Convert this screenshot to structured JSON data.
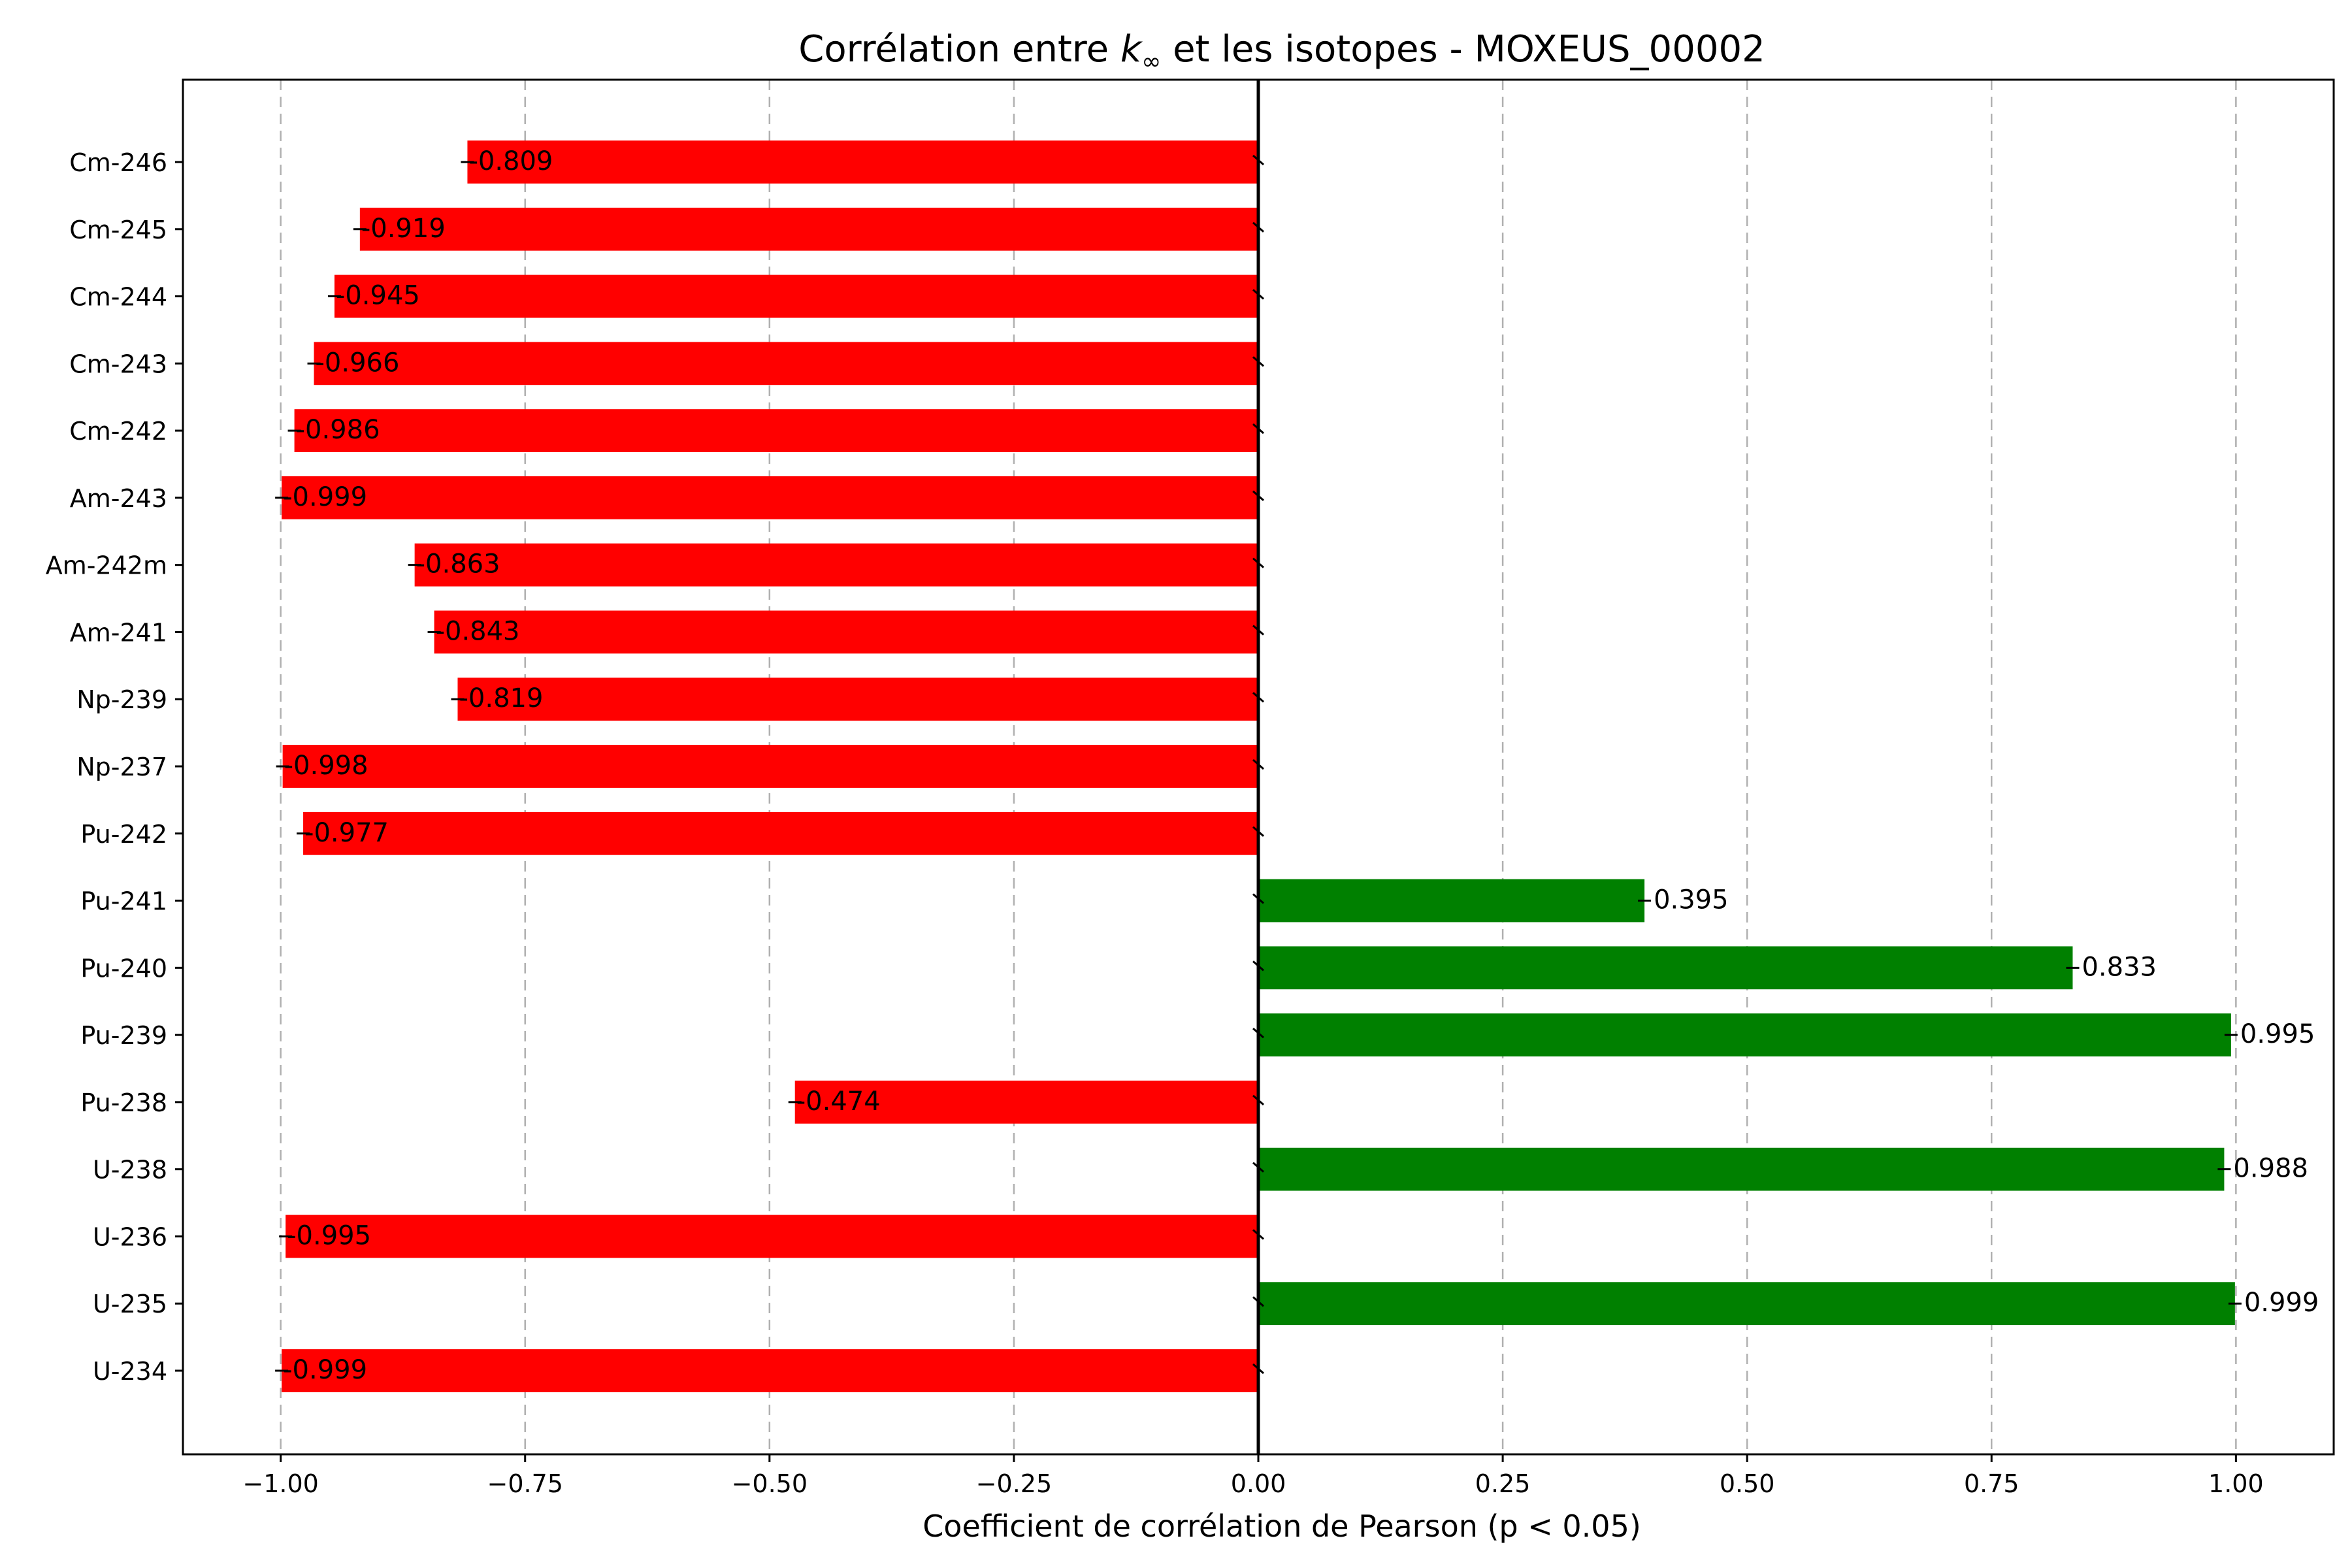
{
  "chart_data": {
    "type": "bar",
    "orientation": "horizontal",
    "title": "Corrélation entre k∞ et les isotopes - MOXEUS_00002",
    "title_parts": {
      "before": "Corrélation entre ",
      "k": "k",
      "sub": "∞",
      "after": " et les isotopes - MOXEUS_00002"
    },
    "xlabel": "Coefficient de corrélation de Pearson (p < 0.05)",
    "ylabel": "",
    "xlim": [
      -1.1,
      1.1
    ],
    "grid": "x, dashed",
    "x_ticks": [
      -1.0,
      -0.75,
      -0.5,
      -0.25,
      0.0,
      0.25,
      0.5,
      0.75,
      1.0
    ],
    "x_tick_labels": [
      "−1.00",
      "−0.75",
      "−0.50",
      "−0.25",
      "0.00",
      "0.25",
      "0.50",
      "0.75",
      "1.00"
    ],
    "categories": [
      "U-234",
      "U-235",
      "U-236",
      "U-238",
      "Pu-238",
      "Pu-239",
      "Pu-240",
      "Pu-241",
      "Pu-242",
      "Np-237",
      "Np-239",
      "Am-241",
      "Am-242m",
      "Am-243",
      "Cm-242",
      "Cm-243",
      "Cm-244",
      "Cm-245",
      "Cm-246"
    ],
    "values": [
      -0.999,
      0.999,
      -0.995,
      0.988,
      -0.474,
      0.995,
      0.833,
      0.395,
      -0.977,
      -0.998,
      -0.819,
      -0.843,
      -0.863,
      -0.999,
      -0.986,
      -0.966,
      -0.945,
      -0.919,
      -0.809
    ],
    "value_labels": [
      "-0.999",
      "0.999",
      "-0.995",
      "0.988",
      "-0.474",
      "0.995",
      "0.833",
      "0.395",
      "-0.977",
      "-0.998",
      "-0.819",
      "-0.843",
      "-0.863",
      "-0.999",
      "-0.986",
      "-0.966",
      "-0.945",
      "-0.919",
      "-0.809"
    ],
    "colors": {
      "positive": "#008000",
      "negative": "#ff0000"
    }
  }
}
